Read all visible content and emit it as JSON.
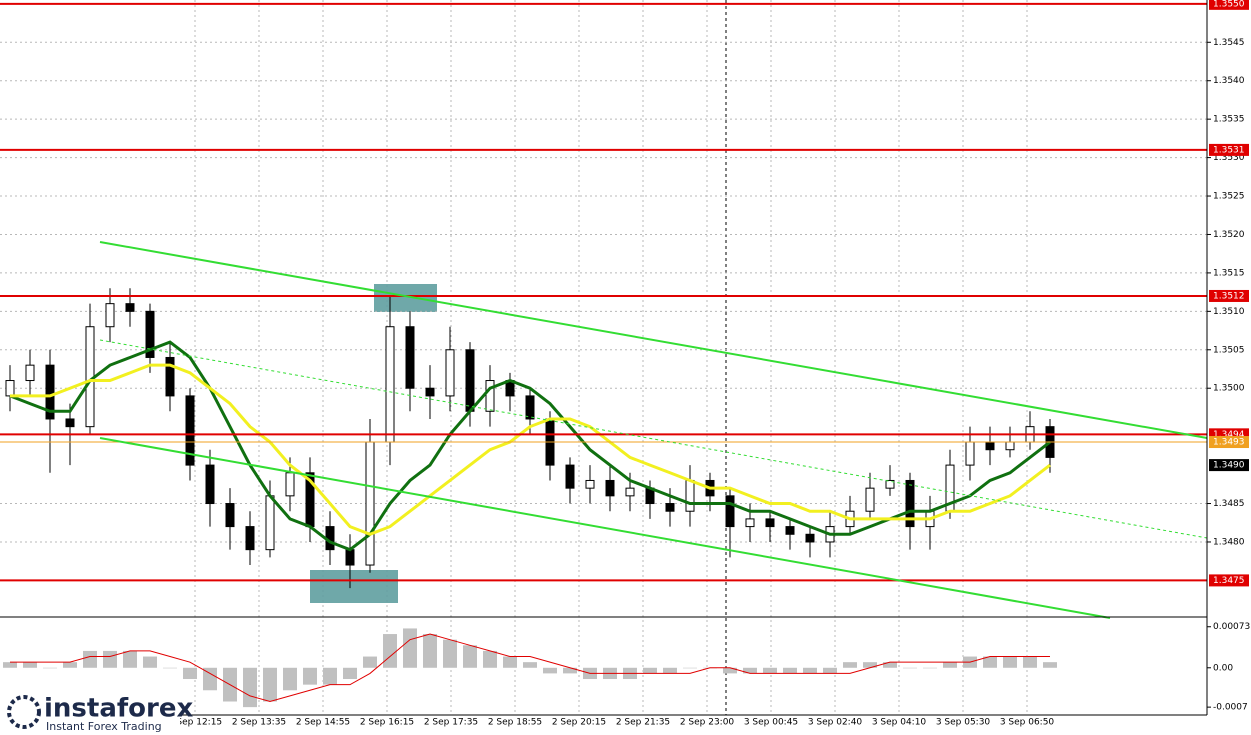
{
  "chart_data": [
    {
      "type": "candlestick",
      "ylim": [
        1.34705,
        1.35505
      ],
      "yticks": [
        1.3545,
        {
          "value": 1.354,
          "label": "1.3540"
        },
        1.3535,
        {
          "value": 1.353,
          "label": "1.3530"
        },
        1.3525,
        {
          "value": 1.352,
          "label": "1.3520"
        },
        1.3515,
        {
          "value": 1.351,
          "label": "1.3510"
        },
        1.3505,
        {
          "value": 1.35,
          "label": "1.3500"
        },
        1.3485,
        {
          "value": 1.348,
          "label": "1.3480"
        }
      ],
      "grid": true,
      "xtick_labels": [
        "2 Sep 12:15",
        "2 Sep 13:35",
        "2 Sep 14:55",
        "2 Sep 16:15",
        "2 Sep 17:35",
        "2 Sep 18:55",
        "2 Sep 20:15",
        "2 Sep 21:35",
        "2 Sep 23:00",
        "3 Sep 00:45",
        "3 Sep 02:40",
        "3 Sep 04:10",
        "3 Sep 05:30",
        "3 Sep 06:50"
      ],
      "levels": [
        {
          "value": 1.355,
          "label": "1.3550",
          "color": "#e00000"
        },
        {
          "value": 1.3531,
          "label": "1.3531",
          "color": "#e00000"
        },
        {
          "value": 1.3512,
          "label": "1.3512",
          "color": "#e00000"
        },
        {
          "value": 1.3494,
          "label": "1.3494",
          "color": "#e00000"
        },
        {
          "value": 1.3493,
          "label": "1.3493",
          "color": "#f0a020"
        },
        {
          "value": 1.3475,
          "label": "1.3475",
          "color": "#e00000"
        }
      ],
      "current_price": {
        "value": 1.349,
        "label": "1.3490",
        "color": "#000000"
      },
      "ohlc": {
        "open": [
          1.3499,
          1.3501,
          1.3503,
          1.3496,
          1.3495,
          1.3508,
          1.3511,
          1.351,
          1.3504,
          1.3499,
          1.349,
          1.3485,
          1.3482,
          1.3479,
          1.3486,
          1.3489,
          1.3482,
          1.3479,
          1.3477,
          1.3493,
          1.3508,
          1.35,
          1.3499,
          1.3505,
          1.3497,
          1.3501,
          1.3499,
          1.3496,
          1.349,
          1.3487,
          1.3488,
          1.3486,
          1.3487,
          1.3485,
          1.3484,
          1.3488,
          1.3486,
          1.3482,
          1.3483,
          1.3482,
          1.3481,
          1.348,
          1.3482,
          1.3484,
          1.3487,
          1.3488,
          1.3482,
          1.3484,
          1.349,
          1.3493,
          1.3492,
          1.3493,
          1.3495
        ],
        "high": [
          1.3503,
          1.3505,
          1.3505,
          1.3498,
          1.3511,
          1.3513,
          1.3513,
          1.3511,
          1.3506,
          1.35,
          1.3492,
          1.3487,
          1.3484,
          1.3488,
          1.3491,
          1.3491,
          1.3484,
          1.3481,
          1.3496,
          1.3512,
          1.351,
          1.3503,
          1.3508,
          1.3506,
          1.3503,
          1.3502,
          1.35,
          1.3497,
          1.3491,
          1.349,
          1.349,
          1.3489,
          1.3488,
          1.3487,
          1.349,
          1.3489,
          1.3487,
          1.3485,
          1.3484,
          1.3483,
          1.3482,
          1.3484,
          1.3486,
          1.3489,
          1.349,
          1.3489,
          1.3486,
          1.3492,
          1.3495,
          1.3495,
          1.3495,
          1.3497,
          1.3496
        ],
        "low": [
          1.3497,
          1.3499,
          1.3489,
          1.349,
          1.3494,
          1.3506,
          1.3508,
          1.3502,
          1.3497,
          1.3488,
          1.3482,
          1.3479,
          1.3477,
          1.3478,
          1.3484,
          1.348,
          1.3477,
          1.3474,
          1.3476,
          1.349,
          1.3497,
          1.3496,
          1.3497,
          1.3495,
          1.3495,
          1.3497,
          1.3494,
          1.3488,
          1.3485,
          1.3485,
          1.3484,
          1.3484,
          1.3483,
          1.3482,
          1.3482,
          1.3484,
          1.3478,
          1.348,
          1.348,
          1.3479,
          1.3478,
          1.3478,
          1.3481,
          1.3483,
          1.3486,
          1.3479,
          1.3479,
          1.3483,
          1.3488,
          1.349,
          1.3491,
          1.3492,
          1.3489
        ],
        "close": [
          1.3501,
          1.3503,
          1.3496,
          1.3495,
          1.3508,
          1.3511,
          1.351,
          1.3504,
          1.3499,
          1.349,
          1.3485,
          1.3482,
          1.3479,
          1.3486,
          1.3489,
          1.3482,
          1.3479,
          1.3477,
          1.3493,
          1.3508,
          1.35,
          1.3499,
          1.3505,
          1.3497,
          1.3501,
          1.3499,
          1.3496,
          1.349,
          1.3487,
          1.3488,
          1.3486,
          1.3487,
          1.3485,
          1.3484,
          1.3488,
          1.3486,
          1.3482,
          1.3483,
          1.3482,
          1.3481,
          1.348,
          1.3482,
          1.3484,
          1.3487,
          1.3488,
          1.3482,
          1.3484,
          1.349,
          1.3493,
          1.3492,
          1.3493,
          1.3495,
          1.3491
        ]
      },
      "series": [
        {
          "color": "#107010",
          "values": [
            1.3499,
            1.3498,
            1.3497,
            1.3497,
            1.3501,
            1.3503,
            1.3504,
            1.3505,
            1.3506,
            1.3504,
            1.35,
            1.3495,
            1.349,
            1.3486,
            1.3483,
            1.3482,
            1.348,
            1.3479,
            1.3481,
            1.3485,
            1.3488,
            1.349,
            1.3494,
            1.3497,
            1.35,
            1.3501,
            1.35,
            1.3498,
            1.3495,
            1.3492,
            1.349,
            1.3488,
            1.3487,
            1.3486,
            1.3485,
            1.3485,
            1.3485,
            1.3484,
            1.3484,
            1.3483,
            1.3482,
            1.3481,
            1.3481,
            1.3482,
            1.3483,
            1.3484,
            1.3484,
            1.3485,
            1.3486,
            1.3488,
            1.3489,
            1.3491,
            1.3493
          ]
        },
        {
          "color": "#f2f020",
          "values": [
            1.3499,
            1.3499,
            1.3499,
            1.35,
            1.3501,
            1.3501,
            1.3502,
            1.3503,
            1.3503,
            1.3502,
            1.35,
            1.3498,
            1.3495,
            1.3493,
            1.349,
            1.3488,
            1.3485,
            1.3482,
            1.3481,
            1.3482,
            1.3484,
            1.3486,
            1.3488,
            1.349,
            1.3492,
            1.3493,
            1.3495,
            1.3496,
            1.3496,
            1.3495,
            1.3493,
            1.3491,
            1.349,
            1.3489,
            1.3488,
            1.3487,
            1.3487,
            1.3486,
            1.3485,
            1.3485,
            1.3484,
            1.3484,
            1.3483,
            1.3483,
            1.3483,
            1.3483,
            1.3483,
            1.3484,
            1.3484,
            1.3485,
            1.3486,
            1.3488,
            1.349
          ]
        }
      ]
    },
    {
      "type": "bar",
      "ylim": [
        -0.00084,
        0.00085
      ],
      "yticks": [
        0.00073,
        {
          "value": 0,
          "label": "0.00"
        },
        -0.0007
      ],
      "color": "#c0c0c0",
      "values": [
        0.0001,
        0.0001,
        0,
        0.0001,
        0.0003,
        0.0003,
        0.0003,
        0.0002,
        0,
        -0.0002,
        -0.0004,
        -0.0006,
        -0.0007,
        -0.0006,
        -0.0004,
        -0.0003,
        -0.0003,
        -0.0002,
        0.0002,
        0.0006,
        0.0007,
        0.0006,
        0.0005,
        0.0004,
        0.0003,
        0.0002,
        0.0001,
        -0.0001,
        -0.0001,
        -0.0002,
        -0.0002,
        -0.0002,
        -0.0001,
        -0.0001,
        0,
        0,
        -0.0001,
        -0.0001,
        -0.0001,
        -0.0001,
        -0.0001,
        -0.0001,
        0.0001,
        0.0001,
        0.0001,
        0,
        0,
        0.0001,
        0.0002,
        0.0002,
        0.0002,
        0.0002,
        0.0001
      ],
      "signal": {
        "color": "#e00000",
        "values": [
          0.0001,
          0.0001,
          0.0001,
          0.0001,
          0.0002,
          0.0002,
          0.0003,
          0.0003,
          0.0002,
          0.0001,
          -0.0001,
          -0.0003,
          -0.0005,
          -0.0006,
          -0.0005,
          -0.0004,
          -0.0003,
          -0.0003,
          -0.0001,
          0.0002,
          0.0005,
          0.0006,
          0.0005,
          0.0004,
          0.0003,
          0.0002,
          0.0002,
          0.0001,
          0,
          -0.0001,
          -0.0001,
          -0.0001,
          -0.0001,
          -0.0001,
          -0.0001,
          0,
          0,
          -0.0001,
          -0.0001,
          -0.0001,
          -0.0001,
          -0.0001,
          -0.0001,
          0,
          0.0001,
          0.0001,
          0.0001,
          0.0001,
          0.0001,
          0.0002,
          0.0002,
          0.0002,
          0.0002
        ]
      }
    }
  ],
  "logo": {
    "name": "instaforex",
    "tagline": "Instant Forex Trading"
  }
}
